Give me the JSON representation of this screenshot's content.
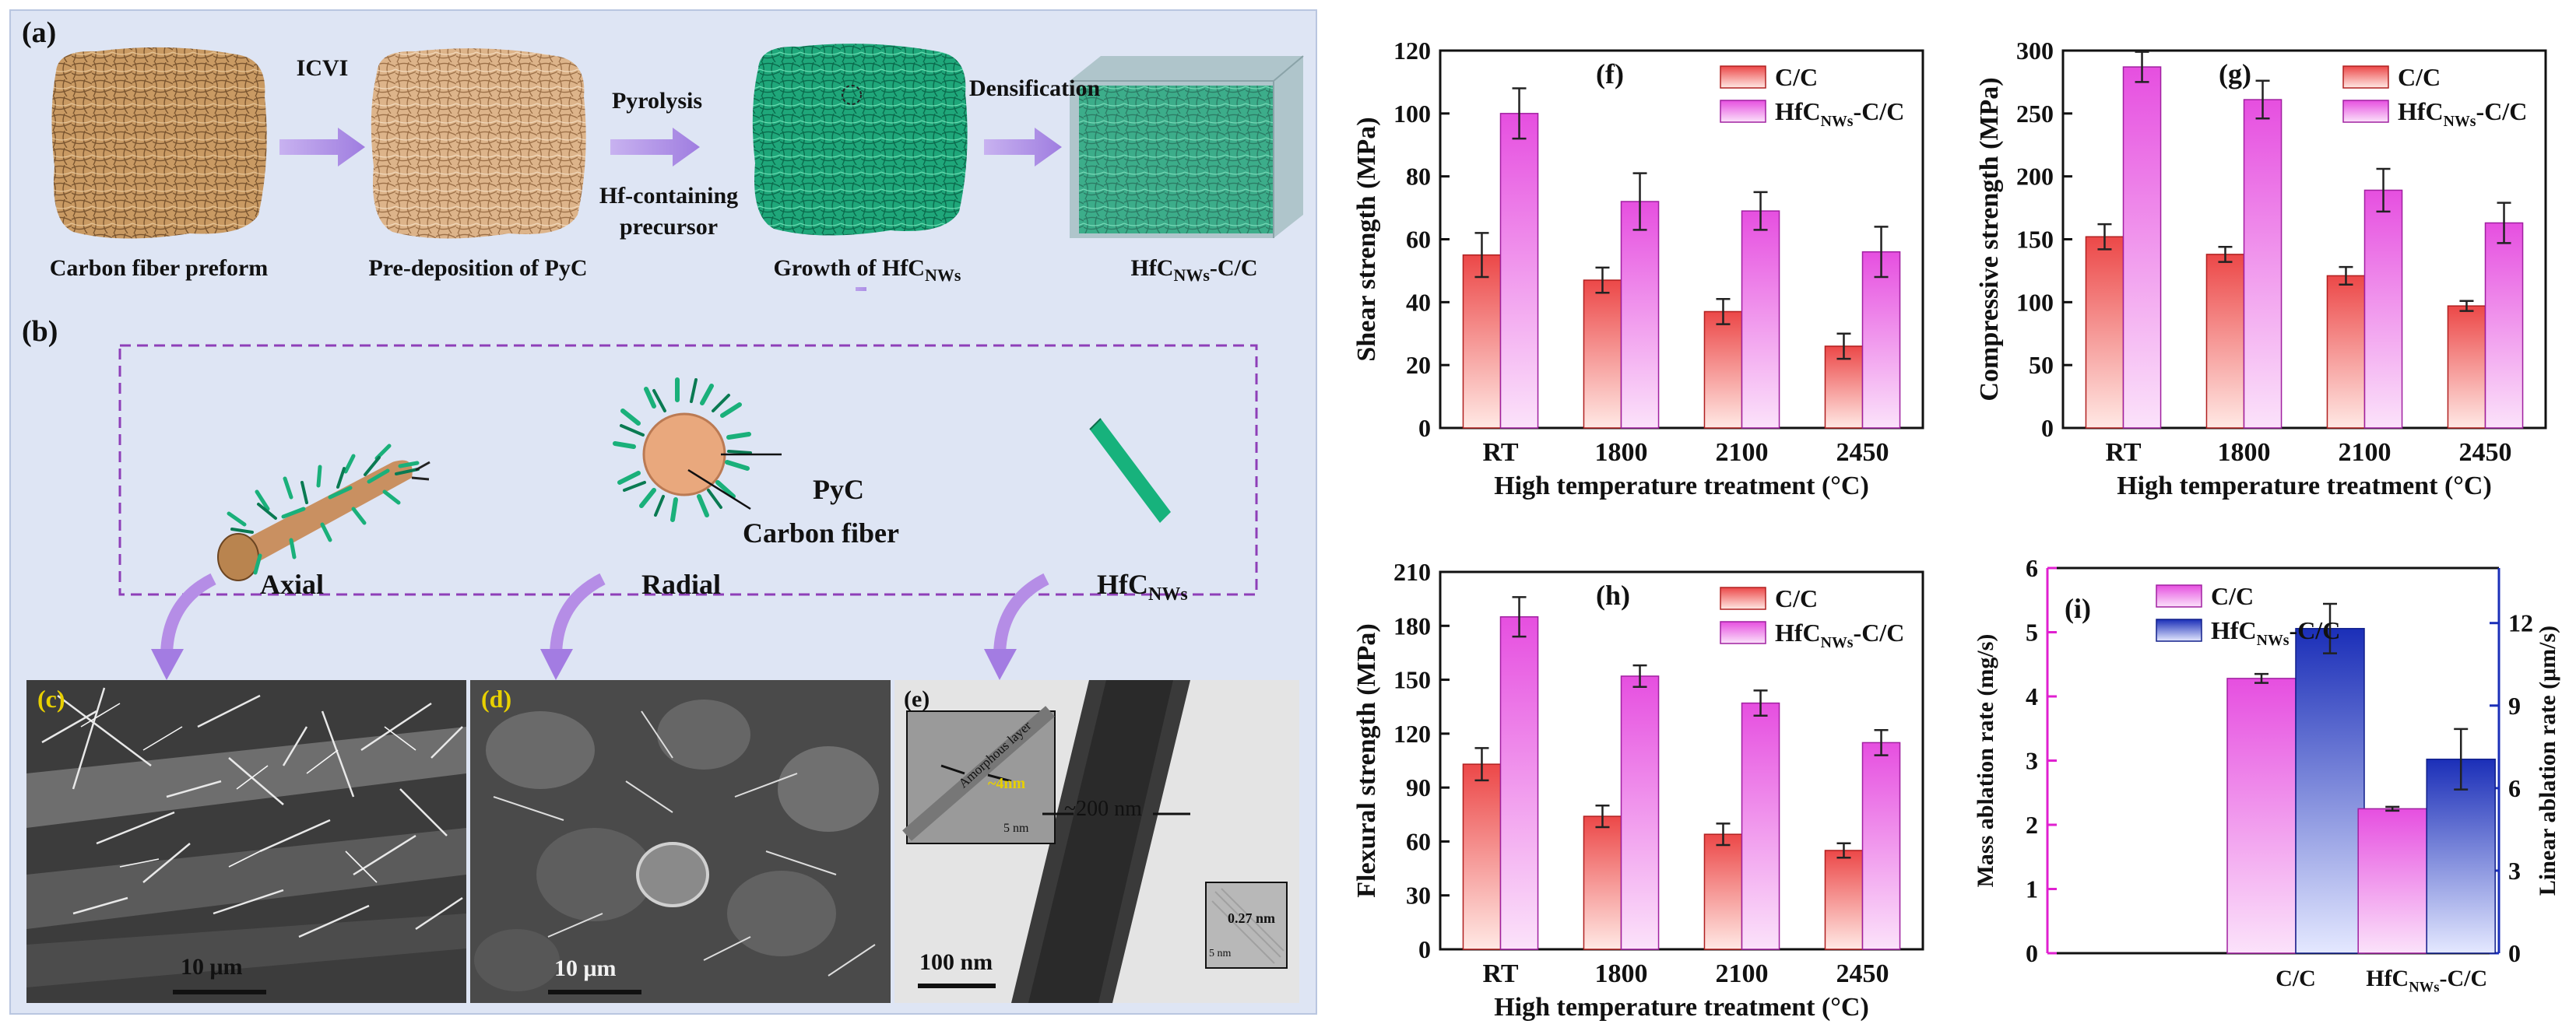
{
  "colors": {
    "cc_fill": "#ec4848",
    "hfc_fill": "#e64fe0",
    "linear_fill": "#1b2fb8",
    "panel_bg": "#dee5f4",
    "arrow": "#b58de6",
    "mass_axis": "#e020d0",
    "linear_axis": "#1b2fb8"
  },
  "schematic": {
    "panel_a_label": "(a)",
    "panel_b_label": "(b)",
    "step_icvi": "ICVI",
    "step_pyrolysis": "Pyrolysis",
    "step_precursor_line1": "Hf-containing",
    "step_precursor_line2": "precursor",
    "step_densification": "Densification",
    "caption_preform": "Carbon fiber preform",
    "caption_pyc": "Pre-deposition of PyC",
    "caption_growth": "Growth of HfC",
    "caption_growth_sub": "NWs",
    "caption_final": "HfC",
    "caption_final_sub": "NWs",
    "caption_final_tail": "-C/C",
    "label_pyc": "PyC",
    "label_carbon_fiber": "Carbon fiber",
    "label_axial": "Axial",
    "label_radial": "Radial",
    "label_hfcnws": "HfC",
    "label_hfcnws_sub": "NWs"
  },
  "micrographs": {
    "c_label": "(c)",
    "c_scale": "10 μm",
    "d_label": "(d)",
    "d_scale": "10 μm",
    "e_label": "(e)",
    "e_scale": "100 nm",
    "e_diameter": "~200 nm",
    "e_inset_layer": "Amorphous layer",
    "e_inset_thickness": "~4nm",
    "e_inset_scale": "5 nm",
    "e_lattice": "0.27 nm",
    "e_lattice_scale": "5 nm"
  },
  "chart_data": [
    {
      "panel": "(f)",
      "type": "bar",
      "categories": [
        "RT",
        "1800",
        "2100",
        "2450"
      ],
      "series": [
        {
          "name": "C/C",
          "values": [
            55,
            47,
            37,
            26
          ],
          "errors": [
            7,
            4,
            4,
            4
          ]
        },
        {
          "name": "HfC",
          "name_sub": "NWs",
          "name_tail": "-C/C",
          "values": [
            100,
            72,
            69,
            56
          ],
          "errors": [
            8,
            9,
            6,
            8
          ]
        }
      ],
      "xlabel": "High temperature treatment (°C)",
      "ylabel": "Shear strength (MPa)",
      "ylim": [
        0,
        120
      ],
      "yticks": [
        0,
        20,
        40,
        60,
        80,
        100,
        120
      ],
      "legend": "top-right"
    },
    {
      "panel": "(g)",
      "type": "bar",
      "categories": [
        "RT",
        "1800",
        "2100",
        "2450"
      ],
      "series": [
        {
          "name": "C/C",
          "values": [
            152,
            138,
            121,
            97
          ],
          "errors": [
            10,
            6,
            7,
            4
          ]
        },
        {
          "name": "HfC",
          "name_sub": "NWs",
          "name_tail": "-C/C",
          "values": [
            287,
            261,
            189,
            163
          ],
          "errors": [
            12,
            15,
            17,
            16
          ]
        }
      ],
      "xlabel": "High temperature treatment (°C)",
      "ylabel": "Compressive strength (MPa)",
      "ylim": [
        0,
        300
      ],
      "yticks": [
        0,
        50,
        100,
        150,
        200,
        250,
        300
      ],
      "legend": "top-right"
    },
    {
      "panel": "(h)",
      "type": "bar",
      "categories": [
        "RT",
        "1800",
        "2100",
        "2450"
      ],
      "series": [
        {
          "name": "C/C",
          "values": [
            103,
            74,
            64,
            55
          ],
          "errors": [
            9,
            6,
            6,
            4
          ]
        },
        {
          "name": "HfC",
          "name_sub": "NWs",
          "name_tail": "-C/C",
          "values": [
            185,
            152,
            137,
            115
          ],
          "errors": [
            11,
            6,
            7,
            7
          ]
        }
      ],
      "xlabel": "High temperature treatment (°C)",
      "ylabel": "Flexural strength (MPa)",
      "ylim": [
        0,
        210
      ],
      "yticks": [
        0,
        30,
        60,
        90,
        120,
        150,
        180,
        210
      ],
      "legend": "top-right"
    },
    {
      "panel": "(i)",
      "type": "bar",
      "categories": [
        "C/C",
        "HfC"
      ],
      "category_sub": [
        "",
        "NWs"
      ],
      "category_tail": [
        "",
        "-C/C"
      ],
      "series": [
        {
          "name": "C/C",
          "axis": "left",
          "values": [
            4.28,
            2.25
          ],
          "errors": [
            0.07,
            0.03
          ]
        },
        {
          "name": "HfC",
          "name_sub": "NWs",
          "name_tail": "-C/C",
          "axis": "right",
          "values": [
            11.8,
            7.05
          ],
          "errors": [
            0.9,
            1.1
          ]
        }
      ],
      "ylabel": "Mass ablation rate (mg/s)",
      "ylabel_right": "Linear ablation rate (μm/s)",
      "ylim": [
        0,
        6
      ],
      "ylim_right": [
        0,
        14
      ],
      "yticks": [
        0,
        1,
        2,
        3,
        4,
        5,
        6
      ],
      "yticks_right": [
        0,
        3,
        6,
        9,
        12
      ],
      "legend": "top-left"
    }
  ]
}
